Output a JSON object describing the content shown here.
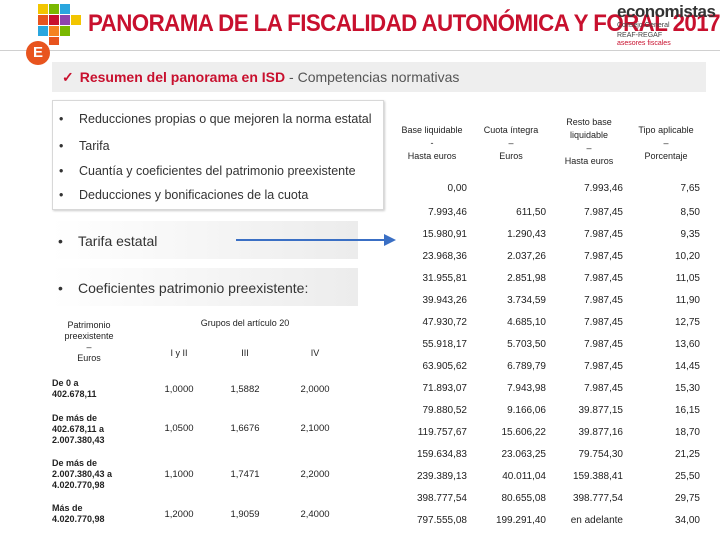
{
  "header": {
    "title_main": "PANORAMA DE LA FISCALIDAD AUTONÓMICA Y FORAL",
    "title_year": "2017",
    "brand_name": "economistas",
    "brand_line1": "Consejo General",
    "brand_line2": "REAF-REGAF",
    "brand_line3": "asesores fiscales",
    "badge_letter": "E"
  },
  "subtitle": {
    "check": "✓",
    "bold": "Resumen del panorama en ISD",
    "rest": " - Competencias normativas"
  },
  "bullets": [
    "Reducciones propias o que mejoren la norma estatal",
    "Tarifa",
    "Cuantía y coeficientes del patrimonio preexistente",
    "Deducciones y bonificaciones de la cuota"
  ],
  "bands": {
    "tarifa": "Tarifa estatal",
    "coef": "Coeficientes patrimonio preexistente:"
  },
  "left_table": {
    "head_col0": [
      "Patrimonio",
      "preexistente",
      "–",
      "Euros"
    ],
    "head_group": "Grupos del artículo 20",
    "head_groups": [
      "I y II",
      "III",
      "IV"
    ],
    "rows": [
      {
        "label": [
          "De 0 a",
          "402.678,11"
        ],
        "values": [
          "1,0000",
          "1,5882",
          "2,0000"
        ]
      },
      {
        "label": [
          "De más de",
          "402.678,11 a",
          "2.007.380,43"
        ],
        "values": [
          "1,0500",
          "1,6676",
          "2,1000"
        ]
      },
      {
        "label": [
          "De más de",
          "2.007.380,43 a",
          "4.020.770,98"
        ],
        "values": [
          "1,1000",
          "1,7471",
          "2,2000"
        ]
      },
      {
        "label": [
          "Más de",
          "4.020.770,98"
        ],
        "values": [
          "1,2000",
          "1,9059",
          "2,4000"
        ]
      }
    ]
  },
  "right_table": {
    "headers": [
      [
        "Base liquidable",
        "-",
        "Hasta euros"
      ],
      [
        "Cuota íntegra",
        "–",
        "Euros"
      ],
      [
        "Resto base",
        "liquidable",
        "–",
        "Hasta euros"
      ],
      [
        "Tipo aplicable",
        "–",
        "Porcentaje"
      ]
    ],
    "rows": [
      [
        "0,00",
        "",
        "7.993,46",
        "7,65"
      ],
      [
        "7.993,46",
        "611,50",
        "7.987,45",
        "8,50"
      ],
      [
        "15.980,91",
        "1.290,43",
        "7.987,45",
        "9,35"
      ],
      [
        "23.968,36",
        "2.037,26",
        "7.987,45",
        "10,20"
      ],
      [
        "31.955,81",
        "2.851,98",
        "7.987,45",
        "11,05"
      ],
      [
        "39.943,26",
        "3.734,59",
        "7.987,45",
        "11,90"
      ],
      [
        "47.930,72",
        "4.685,10",
        "7.987,45",
        "12,75"
      ],
      [
        "55.918,17",
        "5.703,50",
        "7.987,45",
        "13,60"
      ],
      [
        "63.905,62",
        "6.789,79",
        "7.987,45",
        "14,45"
      ],
      [
        "71.893,07",
        "7.943,98",
        "7.987,45",
        "15,30"
      ],
      [
        "79.880,52",
        "9.166,06",
        "39.877,15",
        "16,15"
      ],
      [
        "119.757,67",
        "15.606,22",
        "39.877,16",
        "18,70"
      ],
      [
        "159.634,83",
        "23.063,25",
        "79.754,30",
        "21,25"
      ],
      [
        "239.389,13",
        "40.011,04",
        "159.388,41",
        "25,50"
      ],
      [
        "398.777,54",
        "80.655,08",
        "398.777,54",
        "29,75"
      ],
      [
        "797.555,08",
        "199.291,40",
        "en adelante",
        "34,00"
      ]
    ]
  }
}
